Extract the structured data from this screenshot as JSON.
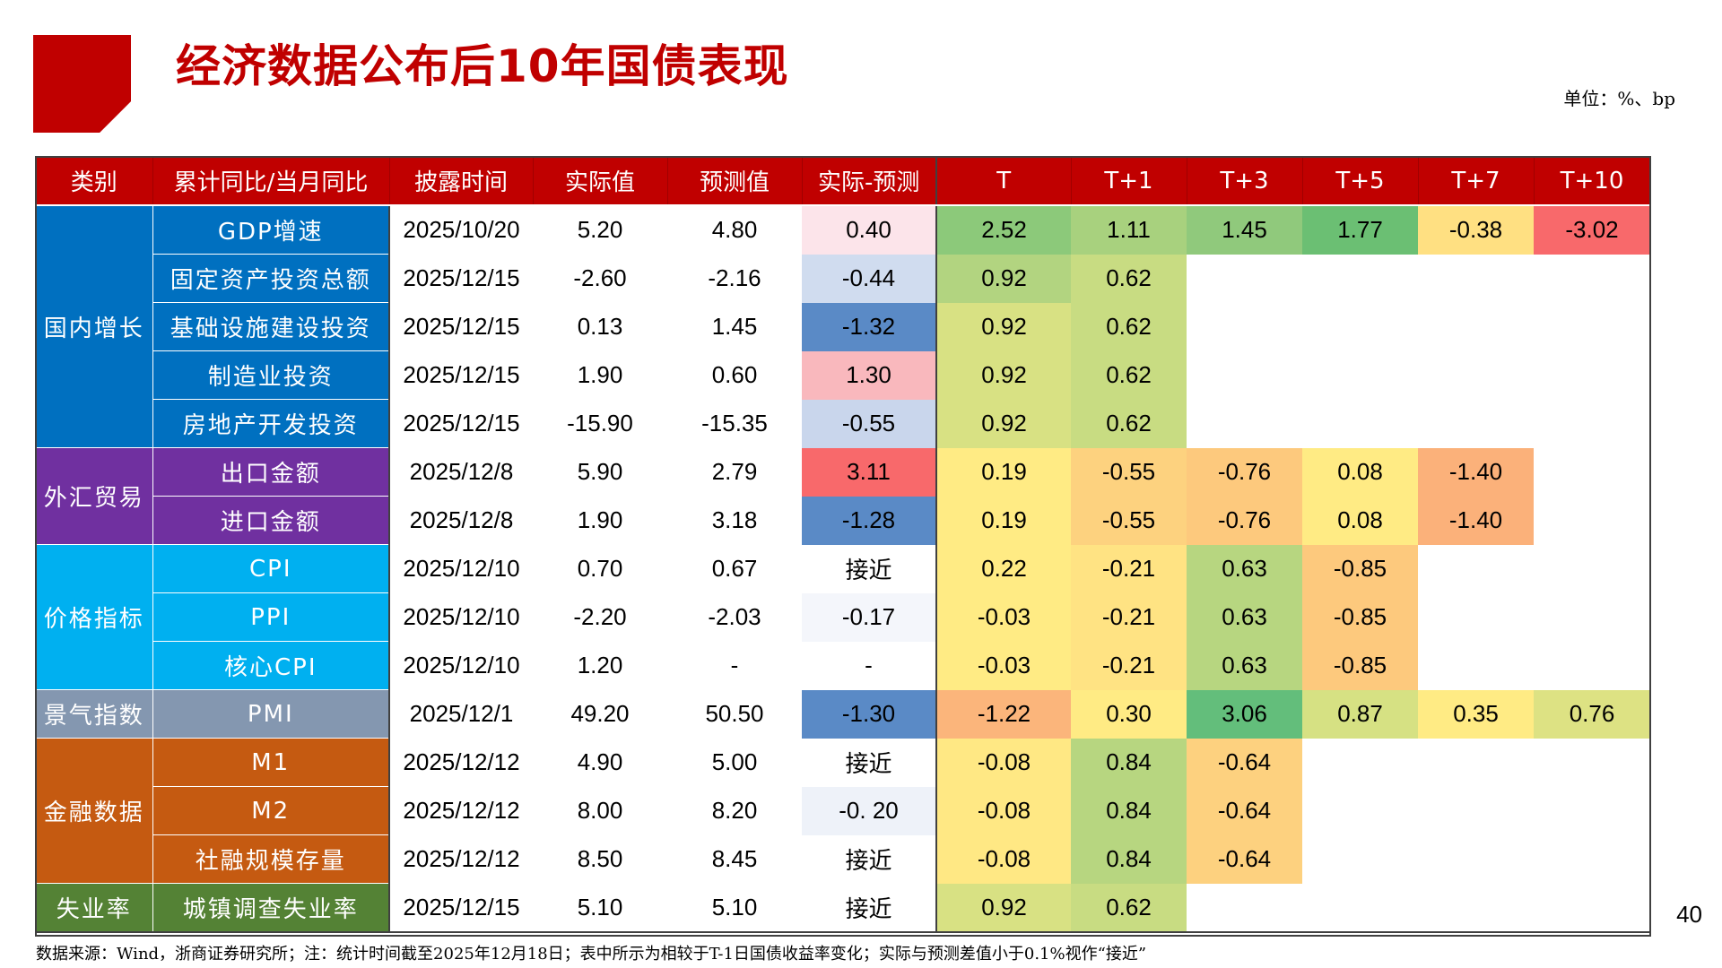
{
  "title": "经济数据公布后10年国债表现",
  "unit": "单位：%、bp",
  "page_number": "40",
  "source_note": "数据来源：Wind，浙商证券研究所；注：统计时间截至2025年12月18日；表中所示为相较于T-1日国债收益率变化；实际与预测差值小于0.1%视作“接近”",
  "headers": [
    "类别",
    "累计同比/当月同比",
    "披露时间",
    "实际值",
    "预测值",
    "实际-预测",
    "T",
    "T+1",
    "T+3",
    "T+5",
    "T+7",
    "T+10"
  ],
  "groups": [
    {
      "label": "国内增长",
      "color": "#0070C0",
      "rows": [
        {
          "indicator": "GDP增速",
          "date": "2025/10/20",
          "actual": "5.20",
          "forecast": "4.80",
          "diff": "0.40",
          "diff_color": "#FCE4EA",
          "t": [
            {
              "v": "2.52",
              "c": "#8CC97A"
            },
            {
              "v": "1.11",
              "c": "#A8D17E"
            },
            {
              "v": "1.45",
              "c": "#90C97C"
            },
            {
              "v": "1.77",
              "c": "#6BBF73"
            },
            {
              "v": "-0.38",
              "c": "#FFE082"
            },
            {
              "v": "-3.02",
              "c": "#F8696B"
            }
          ]
        },
        {
          "indicator": "固定资产投资总额",
          "date": "2025/12/15",
          "actual": "-2.60",
          "forecast": "-2.16",
          "diff": "-0.44",
          "diff_color": "#D0DCEF",
          "t": [
            {
              "v": "0.92",
              "c": "#B2D480"
            },
            {
              "v": "0.62",
              "c": "#C8DC82"
            }
          ]
        },
        {
          "indicator": "基础设施建设投资",
          "date": "2025/12/15",
          "actual": "0.13",
          "forecast": "1.45",
          "diff": "-1.32",
          "diff_color": "#5A8AC6",
          "t": [
            {
              "v": "0.92",
              "c": "#D8E183"
            },
            {
              "v": "0.62",
              "c": "#C8DC82"
            }
          ]
        },
        {
          "indicator": "制造业投资",
          "date": "2025/12/15",
          "actual": "1.90",
          "forecast": "0.60",
          "diff": "1.30",
          "diff_color": "#F9B8BD",
          "t": [
            {
              "v": "0.92",
              "c": "#D8E183"
            },
            {
              "v": "0.62",
              "c": "#C8DC82"
            }
          ]
        },
        {
          "indicator": "房地产开发投资",
          "date": "2025/12/15",
          "actual": "-15.90",
          "forecast": "-15.35",
          "diff": "-0.55",
          "diff_color": "#C9D6EC",
          "t": [
            {
              "v": "0.92",
              "c": "#D8E183"
            },
            {
              "v": "0.62",
              "c": "#C8DC82"
            }
          ]
        }
      ]
    },
    {
      "label": "外汇贸易",
      "color": "#7030A0",
      "rows": [
        {
          "indicator": "出口金额",
          "date": "2025/12/8",
          "actual": "5.90",
          "forecast": "2.79",
          "diff": "3.11",
          "diff_color": "#F8696B",
          "t": [
            {
              "v": "0.19",
              "c": "#FFEB84"
            },
            {
              "v": "-0.55",
              "c": "#FDD27F"
            },
            {
              "v": "-0.76",
              "c": "#FDC97D"
            },
            {
              "v": "0.08",
              "c": "#FFEB84"
            },
            {
              "v": "-1.40",
              "c": "#FBB17A"
            }
          ]
        },
        {
          "indicator": "进口金额",
          "date": "2025/12/8",
          "actual": "1.90",
          "forecast": "3.18",
          "diff": "-1.28",
          "diff_color": "#5A8AC6",
          "t": [
            {
              "v": "0.19",
              "c": "#FFEB84"
            },
            {
              "v": "-0.55",
              "c": "#FDD27F"
            },
            {
              "v": "-0.76",
              "c": "#FDC97D"
            },
            {
              "v": "0.08",
              "c": "#FFEB84"
            },
            {
              "v": "-1.40",
              "c": "#FBB17A"
            }
          ]
        }
      ]
    },
    {
      "label": "价格指标",
      "color": "#00B0F0",
      "rows": [
        {
          "indicator": "CPI",
          "date": "2025/12/10",
          "actual": "0.70",
          "forecast": "0.67",
          "diff": "接近",
          "diff_color": "#FFFFFF",
          "t": [
            {
              "v": "0.22",
              "c": "#FFEB84"
            },
            {
              "v": "-0.21",
              "c": "#FFE383"
            },
            {
              "v": "0.63",
              "c": "#B7D680"
            },
            {
              "v": "-0.85",
              "c": "#FDC97D"
            }
          ]
        },
        {
          "indicator": "PPI",
          "date": "2025/12/10",
          "actual": "-2.20",
          "forecast": "-2.03",
          "diff": "-0.17",
          "diff_color": "#F4F6FB",
          "t": [
            {
              "v": "-0.03",
              "c": "#FFEB84"
            },
            {
              "v": "-0.21",
              "c": "#FFE383"
            },
            {
              "v": "0.63",
              "c": "#B7D680"
            },
            {
              "v": "-0.85",
              "c": "#FDC97D"
            }
          ]
        },
        {
          "indicator": "核心CPI",
          "date": "2025/12/10",
          "actual": "1.20",
          "forecast": "-",
          "diff": "-",
          "diff_color": "#FFFFFF",
          "t": [
            {
              "v": "-0.03",
              "c": "#FFEB84"
            },
            {
              "v": "-0.21",
              "c": "#FFE383"
            },
            {
              "v": "0.63",
              "c": "#B7D680"
            },
            {
              "v": "-0.85",
              "c": "#FDC97D"
            }
          ]
        }
      ]
    },
    {
      "label": "景气指数",
      "color": "#8497B0",
      "rows": [
        {
          "indicator": "PMI",
          "date": "2025/12/1",
          "actual": "49.20",
          "forecast": "50.50",
          "diff": "-1.30",
          "diff_color": "#5A8AC6",
          "t": [
            {
              "v": "-1.22",
              "c": "#FBB57B"
            },
            {
              "v": "0.30",
              "c": "#FFEB84"
            },
            {
              "v": "3.06",
              "c": "#63BE7B"
            },
            {
              "v": "0.87",
              "c": "#D6E183"
            },
            {
              "v": "0.35",
              "c": "#FFEB84"
            },
            {
              "v": "0.76",
              "c": "#DDE283"
            }
          ]
        }
      ]
    },
    {
      "label": "金融数据",
      "color": "#C55A11",
      "rows": [
        {
          "indicator": "M1",
          "date": "2025/12/12",
          "actual": "4.90",
          "forecast": "5.00",
          "diff": "接近",
          "diff_color": "#FFFFFF",
          "t": [
            {
              "v": "-0.08",
              "c": "#FFE884"
            },
            {
              "v": "0.84",
              "c": "#B7D680"
            },
            {
              "v": "-0.64",
              "c": "#FDD17F"
            }
          ]
        },
        {
          "indicator": "M2",
          "date": "2025/12/12",
          "actual": "8.00",
          "forecast": "8.20",
          "diff": "-0. 20",
          "diff_color": "#EEF2F9",
          "t": [
            {
              "v": "-0.08",
              "c": "#FFE884"
            },
            {
              "v": "0.84",
              "c": "#B7D680"
            },
            {
              "v": "-0.64",
              "c": "#FDD17F"
            }
          ]
        },
        {
          "indicator": "社融规模存量",
          "date": "2025/12/12",
          "actual": "8.50",
          "forecast": "8.45",
          "diff": "接近",
          "diff_color": "#FFFFFF",
          "t": [
            {
              "v": "-0.08",
              "c": "#FFE884"
            },
            {
              "v": "0.84",
              "c": "#B7D680"
            },
            {
              "v": "-0.64",
              "c": "#FDD17F"
            }
          ]
        }
      ]
    },
    {
      "label": "失业率",
      "color": "#548235",
      "rows": [
        {
          "indicator": "城镇调查失业率",
          "date": "2025/12/15",
          "actual": "5.10",
          "forecast": "5.10",
          "diff": "接近",
          "diff_color": "#FFFFFF",
          "t": [
            {
              "v": "0.92",
              "c": "#D8E183"
            },
            {
              "v": "0.62",
              "c": "#C8DC82"
            }
          ]
        }
      ]
    }
  ]
}
